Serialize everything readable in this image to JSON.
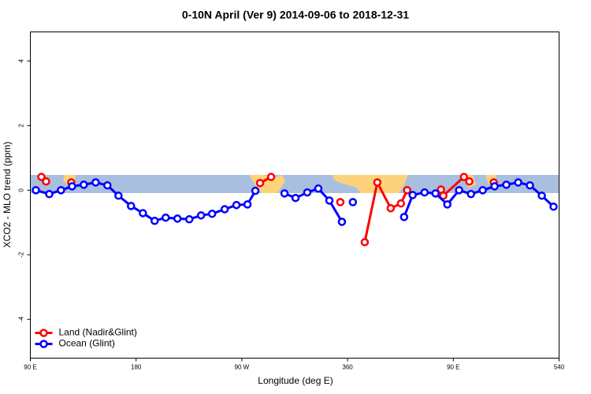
{
  "chart_data": {
    "type": "line",
    "title": "0-10N April (Ver 9)   2014-09-06 to 2018-12-31",
    "xlabel": "Longitude (deg E)",
    "ylabel": "XCO2 - MLO trend (ppm)",
    "xlim": [
      90,
      540
    ],
    "ylim": [
      -5.2,
      4.9
    ],
    "xticks": [
      {
        "value": 90,
        "label": "90 E"
      },
      180,
      {
        "value": 270,
        "label": "90 W"
      },
      360,
      {
        "value": 450,
        "label": "90 E"
      },
      540
    ],
    "yticks": [
      -4,
      -2,
      0,
      2,
      4
    ],
    "legend": "lower left",
    "series": [
      {
        "name": "Land (Nadir&Glint)",
        "color": "#ff0000",
        "x": [
          99.4,
          103.4,
          null,
          124.8,
          null,
          285.5,
          294.9,
          null,
          353.8,
          null,
          374.6,
          385.3,
          396.7,
          405.4,
          410.7,
          null,
          439.5,
          441.5,
          459,
          463.6,
          null,
          484.4
        ],
        "values": [
          0.41,
          0.27,
          null,
          0.24,
          null,
          0.22,
          0.41,
          null,
          -0.37,
          null,
          -1.61,
          0.24,
          -0.56,
          -0.41,
          0,
          null,
          0.02,
          -0.17,
          0.41,
          0.27,
          null,
          0.24
        ]
      },
      {
        "name": "Ocean (Glint)",
        "color": "#0000ff",
        "x": [
          94.7,
          106.1,
          116.1,
          125.5,
          135.5,
          145.6,
          155.6,
          165,
          175.7,
          185.8,
          195.8,
          205.2,
          215.2,
          225.3,
          235.3,
          244.7,
          255.4,
          265.4,
          274.8,
          281.5,
          null,
          306.3,
          315.7,
          325.7,
          335.1,
          344.5,
          355.2,
          null,
          364.5,
          null,
          408.1,
          415.4,
          425.5,
          434.8,
          444.9,
          454.9,
          465,
          475,
          485.1,
          495.1,
          505.2,
          515.2,
          525.3,
          535.3
        ],
        "values": [
          0,
          -0.12,
          0,
          0.12,
          0.17,
          0.24,
          0.15,
          -0.17,
          -0.49,
          -0.71,
          -0.95,
          -0.85,
          -0.88,
          -0.9,
          -0.78,
          -0.73,
          -0.59,
          -0.46,
          -0.44,
          -0.02,
          null,
          -0.1,
          -0.24,
          -0.07,
          0.05,
          -0.32,
          -0.98,
          null,
          -0.37,
          null,
          -0.83,
          -0.15,
          -0.07,
          -0.1,
          -0.44,
          0,
          -0.12,
          0,
          0.12,
          0.17,
          0.24,
          0.15,
          -0.17,
          -0.51
        ]
      }
    ]
  }
}
